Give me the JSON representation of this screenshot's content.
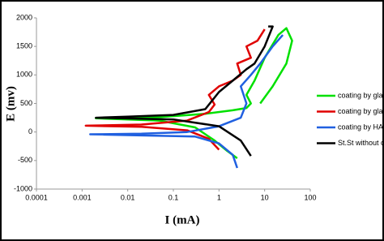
{
  "chart_data": {
    "type": "line",
    "x_label": "I (mA)",
    "y_label": "E (mv)",
    "log_x": true,
    "grid": false,
    "xlim": [
      0.0001,
      100
    ],
    "xticks": [
      0.0001,
      0.001,
      0.01,
      0.1,
      1,
      10,
      100
    ],
    "ylim": [
      -1000,
      2000
    ],
    "yticks": [
      -1000,
      -500,
      0,
      500,
      1000,
      1500,
      2000
    ],
    "series": [
      {
        "name": "coating by glateen",
        "color": "#00e000",
        "x": [
          2.5,
          1.5,
          0.8,
          0.3,
          0.05,
          0.002,
          0.05,
          0.5,
          2,
          4,
          5,
          4,
          6,
          10,
          20,
          30,
          40,
          30,
          15,
          8
        ],
        "values": [
          -460,
          -330,
          -150,
          80,
          200,
          240,
          260,
          320,
          380,
          420,
          500,
          650,
          900,
          1300,
          1700,
          1820,
          1600,
          1200,
          800,
          500
        ]
      },
      {
        "name": "coating by glass",
        "color": "#e00000",
        "x": [
          1,
          0.6,
          0.2,
          0.02,
          0.0012,
          0.02,
          0.2,
          0.6,
          0.8,
          0.6,
          1,
          2,
          3,
          2.5,
          5,
          4,
          7,
          10
        ],
        "values": [
          -310,
          -120,
          30,
          90,
          110,
          130,
          200,
          350,
          480,
          650,
          800,
          900,
          1000,
          1200,
          1300,
          1500,
          1600,
          1800
        ]
      },
      {
        "name": "coating by HA",
        "color": "#2060e0",
        "x": [
          2.5,
          2,
          1,
          0.3,
          0.0015,
          0.02,
          0.2,
          1,
          3,
          4,
          3,
          5,
          8,
          15,
          25
        ],
        "values": [
          -630,
          -400,
          -200,
          -80,
          -40,
          -30,
          0,
          100,
          250,
          500,
          800,
          1000,
          1200,
          1500,
          1700
        ]
      },
      {
        "name": "St.St without coating",
        "color": "#000000",
        "x": [
          5,
          3,
          1,
          0.1,
          0.002,
          0.01,
          0.1,
          0.5,
          1,
          2,
          4,
          6,
          10,
          15,
          12
        ],
        "values": [
          -420,
          -150,
          100,
          220,
          250,
          270,
          300,
          400,
          700,
          900,
          1100,
          1200,
          1500,
          1850,
          1850
        ]
      }
    ]
  }
}
